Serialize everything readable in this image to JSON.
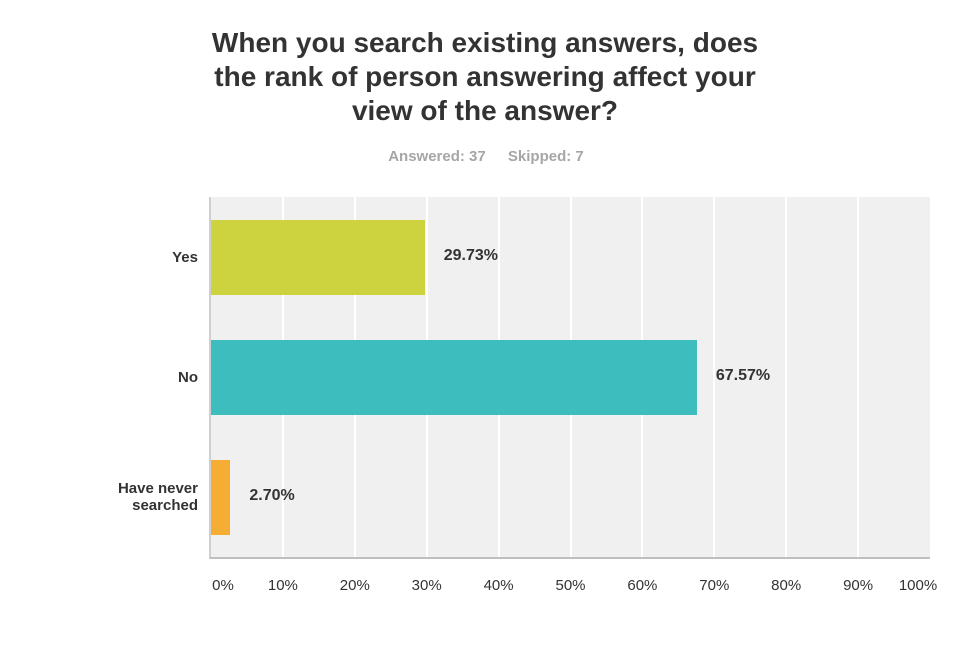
{
  "chart_data": {
    "type": "bar",
    "orientation": "horizontal",
    "title_lines": [
      "When you search existing answers, does",
      "the rank of person answering affect your",
      "view of the answer?"
    ],
    "answered": "Answered: 37",
    "skipped": "Skipped: 7",
    "categories": [
      {
        "label_lines": [
          "Yes"
        ],
        "value": 29.73,
        "label": "29.73%",
        "color": "#cdd23f"
      },
      {
        "label_lines": [
          "No"
        ],
        "value": 67.57,
        "label": "67.57%",
        "color": "#3dbdbe"
      },
      {
        "label_lines": [
          "Have never",
          "searched"
        ],
        "value": 2.7,
        "label": "2.70%",
        "color": "#f5ad33"
      }
    ],
    "xlim": [
      0,
      100
    ],
    "xticks": [
      "0%",
      "10%",
      "20%",
      "30%",
      "40%",
      "50%",
      "60%",
      "70%",
      "80%",
      "90%",
      "100%"
    ],
    "grid": true,
    "legend": "none"
  }
}
